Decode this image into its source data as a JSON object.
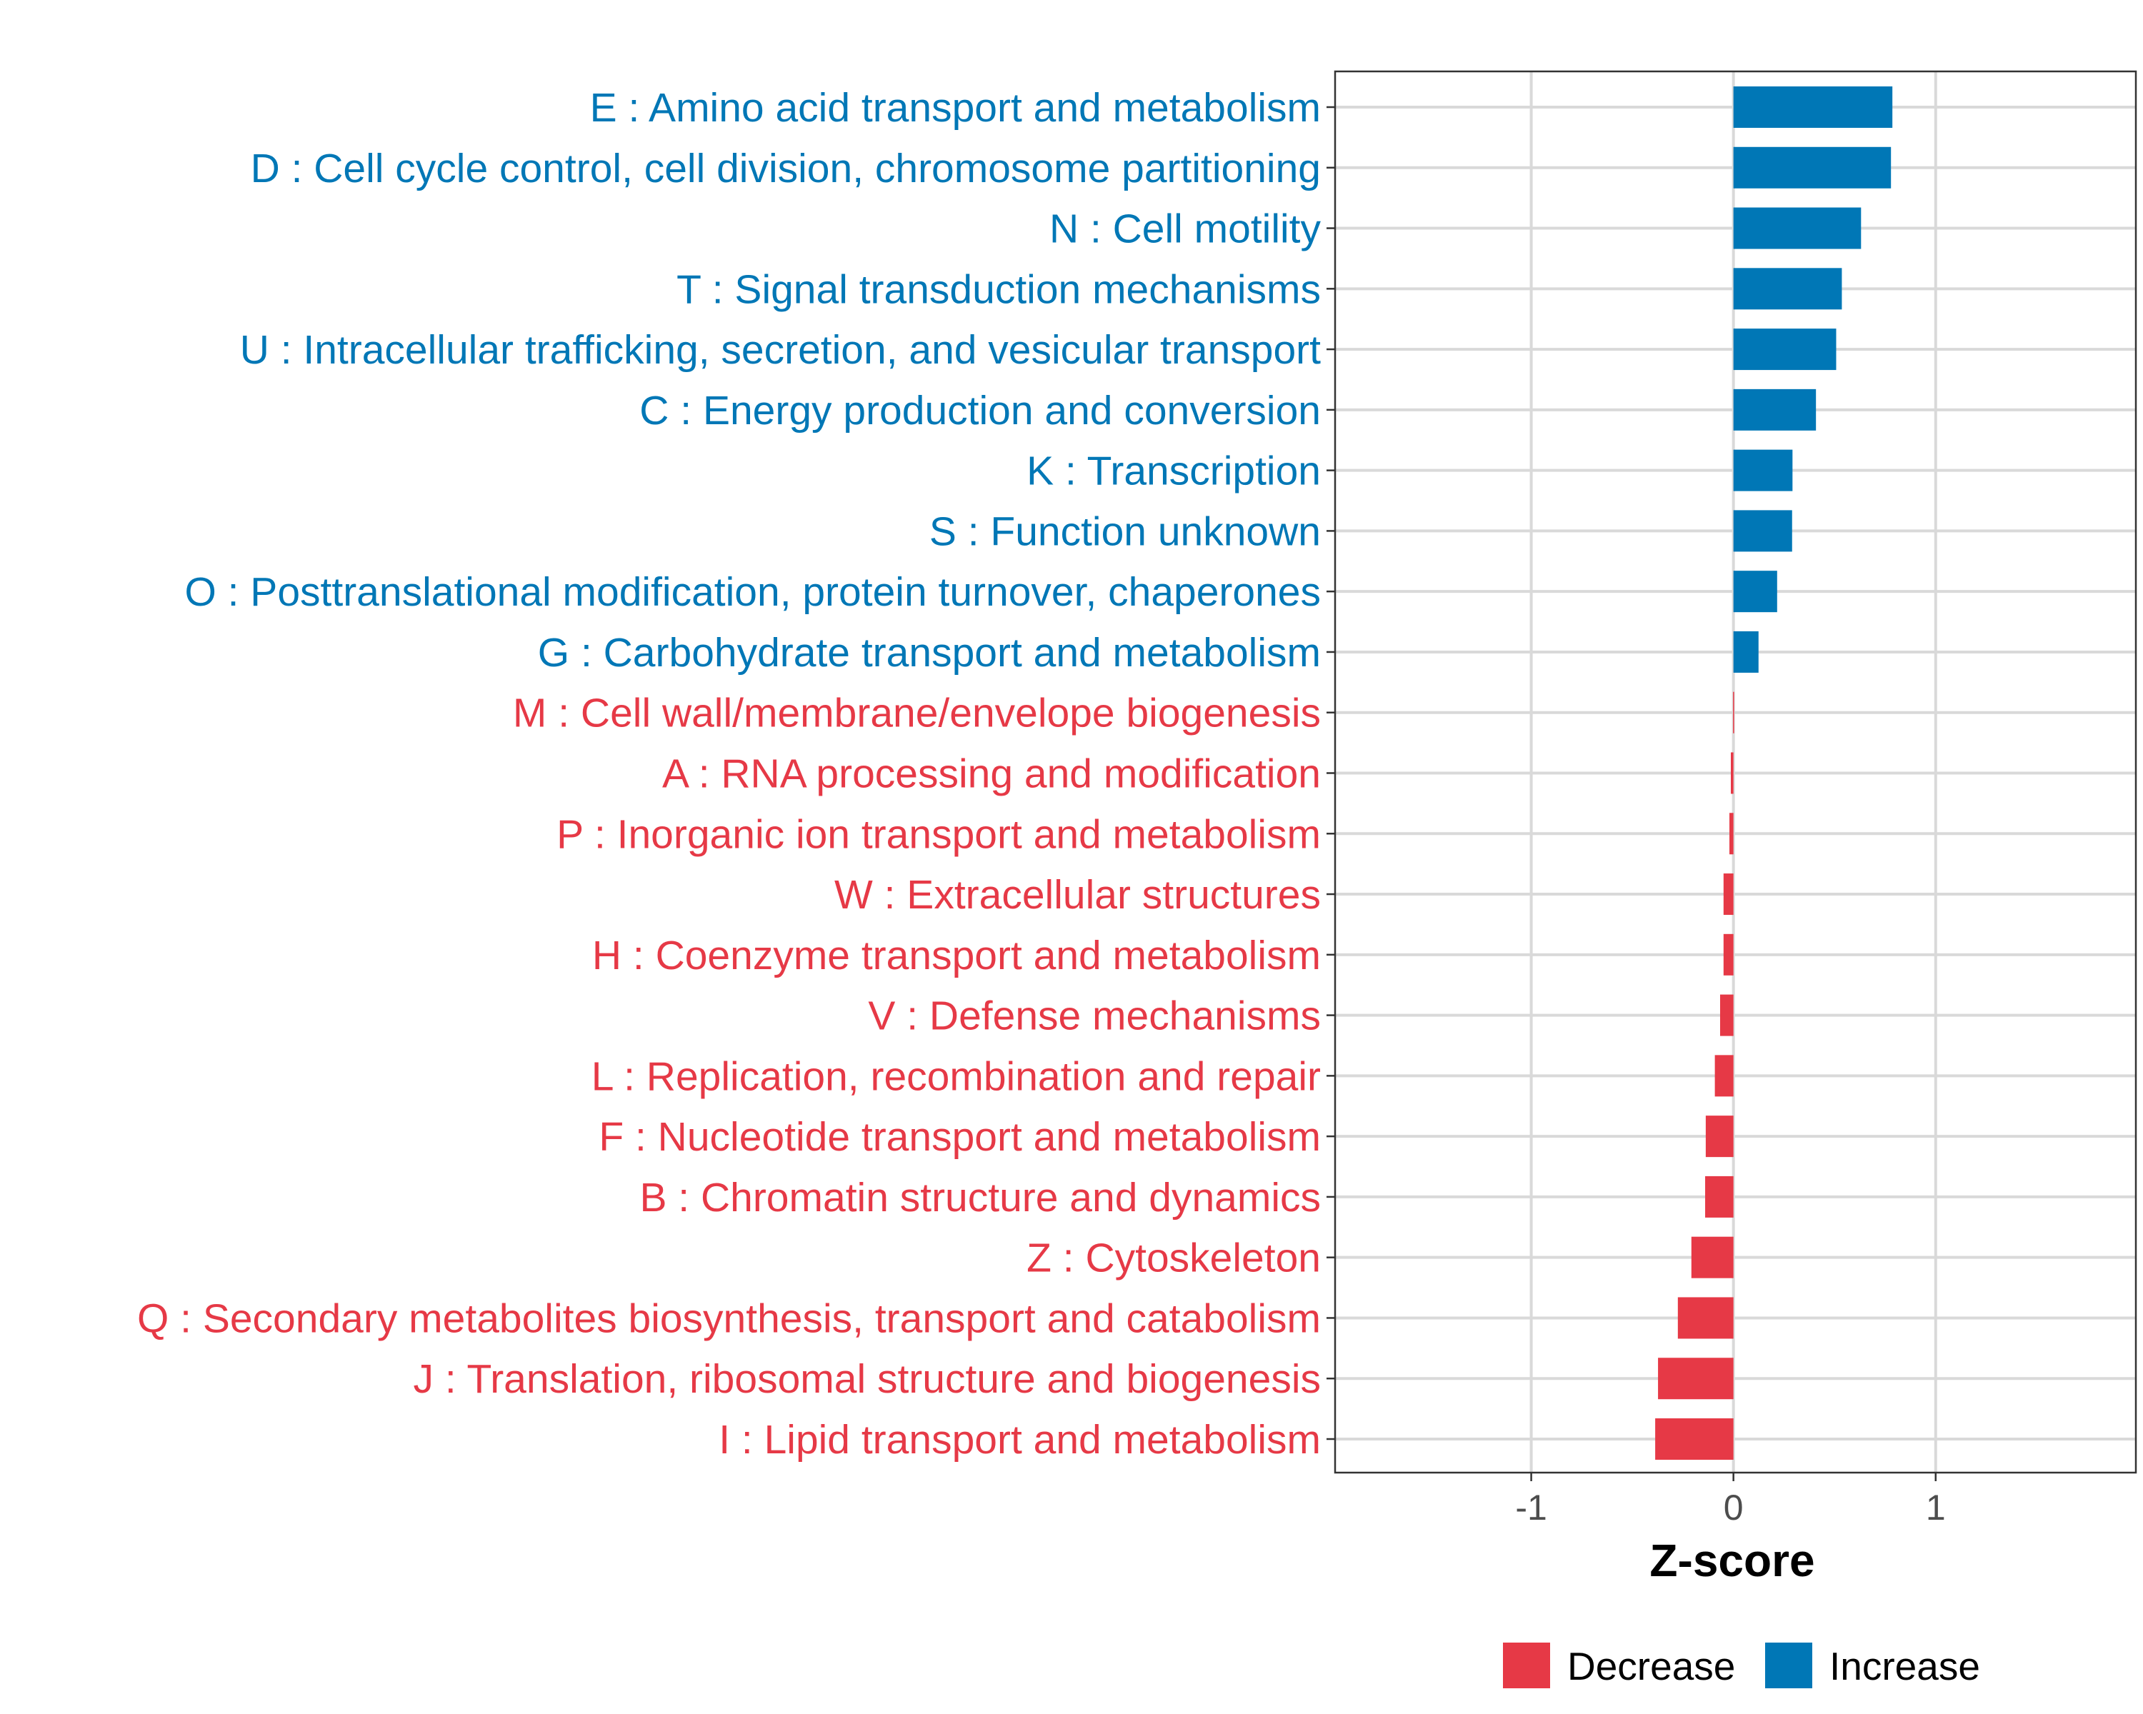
{
  "chart_data": {
    "type": "bar",
    "orientation": "horizontal",
    "title": "",
    "xlabel": "Z-score",
    "ylabel": "",
    "xlim": [
      -1.97,
      1.99
    ],
    "xticks": [
      -1,
      0,
      1
    ],
    "xtick_labels": [
      "-1",
      "0",
      "1"
    ],
    "grid": true,
    "legend_position": "bottom",
    "legend": [
      {
        "name": "Decrease",
        "color": "#E63946"
      },
      {
        "name": "Increase",
        "color": "#0077B6"
      }
    ],
    "categories": [
      "E : Amino acid transport and metabolism",
      "D : Cell cycle control, cell division, chromosome partitioning",
      "N : Cell motility",
      "T : Signal transduction mechanisms",
      "U : Intracellular trafficking, secretion, and vesicular transport",
      "C : Energy production and conversion",
      "K : Transcription",
      "S : Function unknown",
      "O : Posttranslational modification, protein turnover, chaperones",
      "G : Carbohydrate transport and metabolism",
      "M : Cell wall/membrane/envelope biogenesis",
      "A : RNA processing and modification",
      "P : Inorganic ion transport and metabolism",
      "W : Extracellular structures",
      "H : Coenzyme transport and metabolism",
      "V : Defense mechanisms",
      "L : Replication, recombination and repair",
      "F : Nucleotide transport and metabolism",
      "B : Chromatin structure and dynamics",
      "Z : Cytoskeleton",
      "Q : Secondary metabolites biosynthesis, transport and catabolism",
      "J : Translation, ribosomal structure and biogenesis",
      "I : Lipid transport and metabolism"
    ],
    "values": [
      0.786,
      0.779,
      0.631,
      0.536,
      0.508,
      0.408,
      0.292,
      0.29,
      0.216,
      0.124,
      -0.002,
      -0.013,
      -0.02,
      -0.049,
      -0.049,
      -0.066,
      -0.092,
      -0.137,
      -0.14,
      -0.208,
      -0.275,
      -0.373,
      -0.387
    ],
    "colors": {
      "increase": "#0077B6",
      "decrease": "#E63946"
    }
  }
}
